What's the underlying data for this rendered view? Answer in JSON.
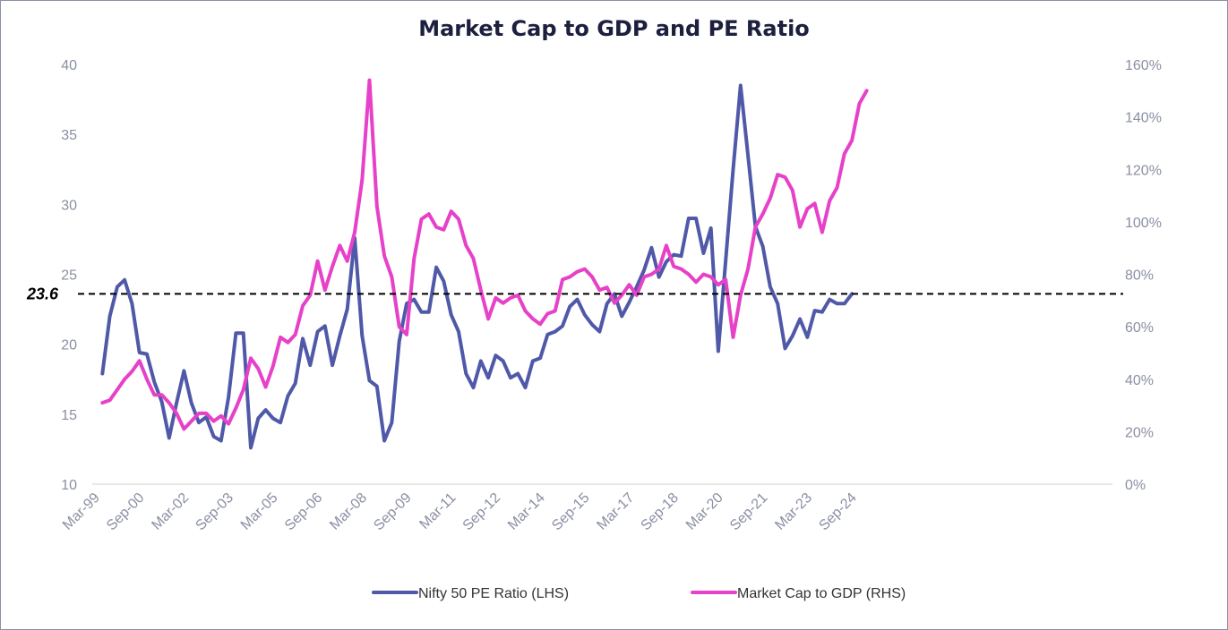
{
  "colors": {
    "pe": "#4f59a8",
    "mcap": "#e641c8",
    "axis_text": "#8a8fa3"
  },
  "chart_data": {
    "type": "line",
    "title": "Market Cap to GDP and PE Ratio",
    "x_ticks": [
      "Mar-99",
      "Sep-00",
      "Mar-02",
      "Sep-03",
      "Mar-05",
      "Sep-06",
      "Mar-08",
      "Sep-09",
      "Mar-11",
      "Sep-12",
      "Mar-14",
      "Sep-15",
      "Mar-17",
      "Sep-18",
      "Mar-20",
      "Sep-21",
      "Mar-23",
      "Sep-24"
    ],
    "y_left": {
      "min": 10,
      "max": 40,
      "ticks": [
        "10",
        "15",
        "20",
        "25",
        "30",
        "35",
        "40"
      ]
    },
    "y_right": {
      "min": 0,
      "max": 160,
      "ticks": [
        "0%",
        "20%",
        "40%",
        "60%",
        "80%",
        "100%",
        "120%",
        "140%",
        "160%"
      ]
    },
    "reference_line": {
      "value": 23.6,
      "label": "23.6",
      "style": "dashed"
    },
    "x_start": "Mar-99",
    "quarter_step_months": 3,
    "series": [
      {
        "name": "Nifty 50 PE Ratio (LHS)",
        "axis": "left",
        "start": "Jun-99",
        "values": [
          17.9,
          22.0,
          24.1,
          24.6,
          22.9,
          19.4,
          19.3,
          17.3,
          15.9,
          13.3,
          15.8,
          18.1,
          15.8,
          14.4,
          14.8,
          13.4,
          13.1,
          16.2,
          20.8,
          20.8,
          12.6,
          14.7,
          15.3,
          14.7,
          14.4,
          16.3,
          17.2,
          20.4,
          18.5,
          20.9,
          21.3,
          18.5,
          20.6,
          22.5,
          27.6,
          20.6,
          17.4,
          17.0,
          13.1,
          14.4,
          20.2,
          22.9,
          23.2,
          22.3,
          22.3,
          25.5,
          24.5,
          22.1,
          20.9,
          17.9,
          16.9,
          18.8,
          17.6,
          19.2,
          18.8,
          17.6,
          17.9,
          16.9,
          18.8,
          19.0,
          20.7,
          20.9,
          21.3,
          22.7,
          23.2,
          22.1,
          21.4,
          20.9,
          22.9,
          23.6,
          22.0,
          23.0,
          24.1,
          25.3,
          26.9,
          24.8,
          25.9,
          26.4,
          26.3,
          29.0,
          29.0,
          26.5,
          28.3,
          19.5,
          26.0,
          32.5,
          38.5,
          33.5,
          28.4,
          27.0,
          24.1,
          22.9,
          19.7,
          20.6,
          21.8,
          20.5,
          22.4,
          22.3,
          23.2,
          22.9,
          22.9,
          23.6
        ]
      },
      {
        "name": "Market Cap to GDP (RHS)",
        "axis": "right",
        "start": "Jun-99",
        "values": [
          31,
          32,
          36,
          40,
          43,
          47,
          40,
          34,
          34,
          31,
          27,
          21,
          24,
          27,
          27,
          24,
          26,
          23,
          29,
          36,
          48,
          44,
          37,
          45,
          56,
          54,
          57,
          68,
          72,
          85,
          74,
          83,
          91,
          85,
          96,
          116,
          154,
          106,
          87,
          79,
          60,
          57,
          86,
          101,
          103,
          98,
          97,
          104,
          101,
          91,
          86,
          74,
          63,
          71,
          69,
          71,
          72,
          66,
          63,
          61,
          65,
          66,
          78,
          79,
          81,
          82,
          79,
          74,
          75,
          69,
          72,
          76,
          72,
          79,
          80,
          82,
          91,
          83,
          82,
          80,
          77,
          80,
          79,
          76,
          78,
          56,
          72,
          82,
          98,
          103,
          109,
          118,
          117,
          112,
          98,
          105,
          107,
          96,
          108,
          113,
          126,
          131,
          145,
          150
        ]
      }
    ],
    "legend": [
      "Nifty 50 PE Ratio (LHS)",
      "Market Cap to GDP (RHS)"
    ],
    "legend_position": "bottom",
    "grid": false
  }
}
